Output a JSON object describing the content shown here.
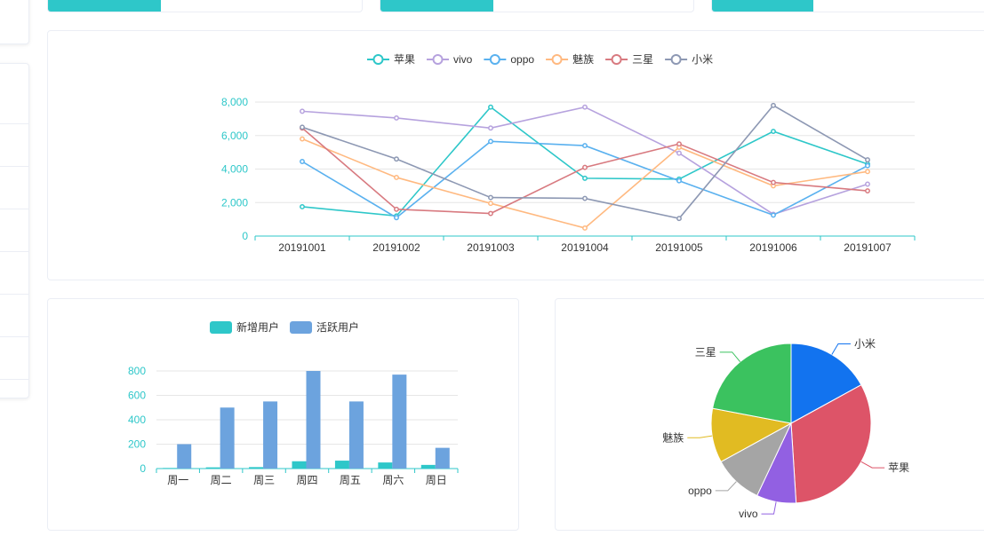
{
  "colors": {
    "primary_teal": "#2ec7c9",
    "bar_blue": "#6ca3de",
    "grid": "#e6e6e6",
    "axis": "#2ec7c9",
    "label": "#666666"
  },
  "top_stats": [
    {
      "progress": 0.36
    },
    {
      "progress": 0.36
    },
    {
      "progress": 0.36
    }
  ],
  "chart_data": [
    {
      "type": "line",
      "x": [
        "20191001",
        "20191002",
        "20191003",
        "20191004",
        "20191005",
        "20191006",
        "20191007"
      ],
      "ylim": [
        0,
        8000
      ],
      "yticks": [
        0,
        2000,
        4000,
        6000,
        8000
      ],
      "ytick_labels": [
        "0",
        "2,000",
        "4,000",
        "6,000",
        "8,000"
      ],
      "legend_position": "top-center",
      "grid": true,
      "series": [
        {
          "name": "苹果",
          "color": "#2ec7c9",
          "values": [
            1750,
            1200,
            7700,
            3450,
            3400,
            6250,
            4300
          ]
        },
        {
          "name": "vivo",
          "color": "#b6a2de",
          "values": [
            7450,
            7050,
            6450,
            7700,
            4950,
            1300,
            3100
          ]
        },
        {
          "name": "oppo",
          "color": "#5ab1ef",
          "values": [
            4450,
            1100,
            5650,
            5400,
            3300,
            1250,
            4200
          ]
        },
        {
          "name": "魅族",
          "color": "#ffb980",
          "values": [
            5800,
            3500,
            1950,
            480,
            5300,
            3000,
            3850
          ]
        },
        {
          "name": "三星",
          "color": "#d87a80",
          "values": [
            6450,
            1600,
            1350,
            4100,
            5500,
            3200,
            2700
          ]
        },
        {
          "name": "小米",
          "color": "#8d98b3",
          "values": [
            6500,
            4600,
            2300,
            2250,
            1050,
            7800,
            4550
          ]
        }
      ]
    },
    {
      "type": "bar",
      "categories": [
        "周一",
        "周二",
        "周三",
        "周四",
        "周五",
        "周六",
        "周日"
      ],
      "ylim": [
        0,
        800
      ],
      "yticks": [
        0,
        200,
        400,
        600,
        800
      ],
      "ytick_labels": [
        "0",
        "200",
        "400",
        "600",
        "800"
      ],
      "legend_position": "top-center",
      "grid": true,
      "series": [
        {
          "name": "新增用户",
          "color": "#2ec7c9",
          "values": [
            5,
            10,
            12,
            60,
            65,
            50,
            30
          ]
        },
        {
          "name": "活跃用户",
          "color": "#6ca3de",
          "values": [
            200,
            500,
            550,
            800,
            550,
            770,
            170
          ]
        }
      ]
    },
    {
      "type": "pie",
      "slices": [
        {
          "name": "小米",
          "value": 17,
          "color": "#1273ef"
        },
        {
          "name": "苹果",
          "value": 32,
          "color": "#dd5468"
        },
        {
          "name": "vivo",
          "value": 8,
          "color": "#9260e2"
        },
        {
          "name": "oppo",
          "value": 10,
          "color": "#a5a5a5"
        },
        {
          "name": "魅族",
          "value": 11,
          "color": "#e1bb22"
        },
        {
          "name": "三星",
          "value": 22,
          "color": "#3bc25f"
        }
      ]
    }
  ]
}
